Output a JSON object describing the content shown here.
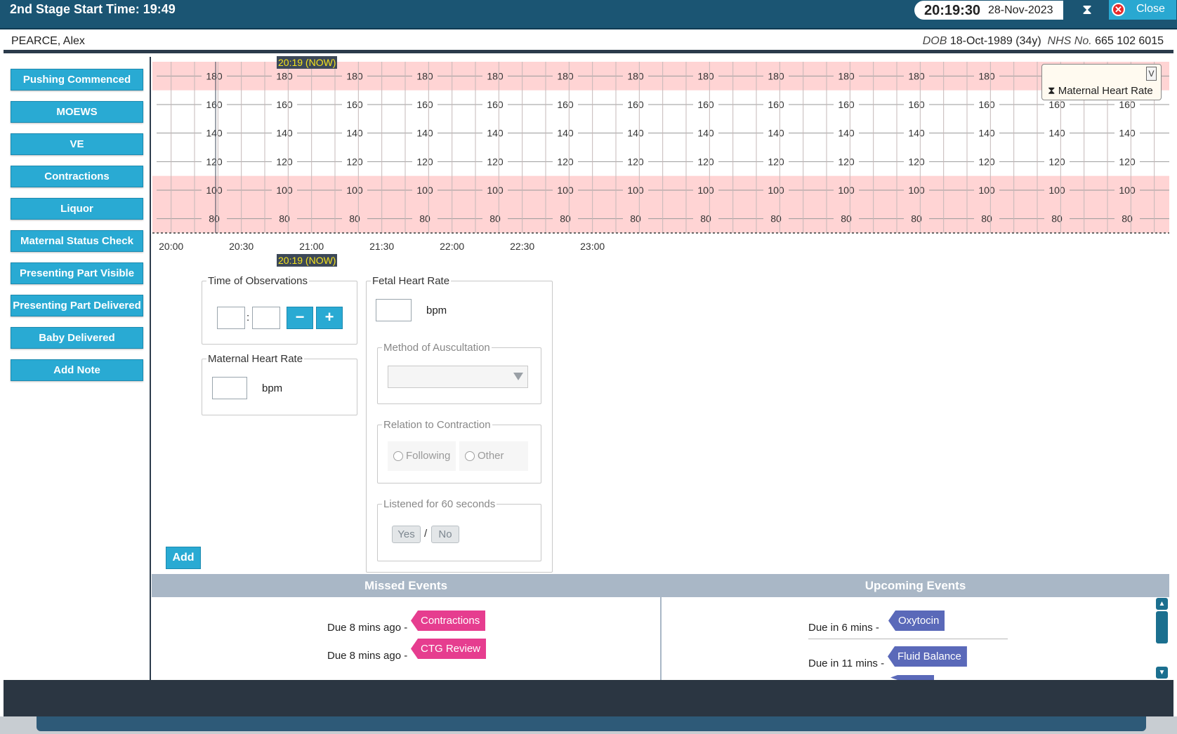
{
  "titlebar": {
    "title": "2nd Stage Start Time: 19:49",
    "clock_time": "20:19:30",
    "clock_date": "28-Nov-2023",
    "close_label": "Close"
  },
  "patient": {
    "name": "PEARCE, Alex",
    "dob_label": "DOB",
    "dob_value": "18-Oct-1989 (34y)",
    "nhs_label": "NHS No.",
    "nhs_value": "665 102 6015"
  },
  "sidebar": {
    "buttons": [
      "Pushing Commenced",
      "MOEWS",
      "VE",
      "Contractions",
      "Liquor",
      "Maternal Status Check",
      "Presenting Part Visible",
      "Presenting Part Delivered",
      "Baby Delivered",
      "Add Note"
    ]
  },
  "chart": {
    "now_label": "20:19 (NOW)",
    "legend_selected": "Maternal Heart Rate",
    "legend_dropdown_glyph": "V",
    "band_color": "#ffd4d4"
  },
  "chart_data": {
    "type": "line",
    "title": "",
    "series": [
      {
        "name": "Maternal Heart Rate",
        "values": []
      }
    ],
    "y_ticks": [
      180,
      160,
      140,
      120,
      100,
      80
    ],
    "x_ticks": [
      "20:00",
      "20:30",
      "21:00",
      "21:30",
      "22:00",
      "22:30",
      "23:00"
    ],
    "now_time": "20:19",
    "shaded_above": 170,
    "shaded_below": 110
  },
  "form": {
    "time_obs_legend": "Time of Observations",
    "time_separator": ":",
    "minus_label": "−",
    "plus_label": "+",
    "maternal_hr_legend": "Maternal Heart Rate",
    "maternal_hr_unit": "bpm",
    "fetal_hr_legend": "Fetal Heart Rate",
    "fetal_hr_unit": "bpm",
    "auscultation_legend": "Method of Auscultation",
    "relation_legend": "Relation to Contraction",
    "relation_options": [
      "Following",
      "Other"
    ],
    "listened_legend": "Listened for 60 seconds",
    "yes_label": "Yes",
    "slash": "/",
    "no_label": "No",
    "add_label": "Add"
  },
  "events": {
    "missed_title": "Missed Events",
    "upcoming_title": "Upcoming Events",
    "missed": [
      {
        "due": "Due 8 mins ago -",
        "tag": "Contractions"
      },
      {
        "due": "Due 8 mins ago -",
        "tag": "CTG Review"
      }
    ],
    "upcoming": [
      {
        "due": "Due in 6 mins -",
        "tag": "Oxytocin"
      },
      {
        "due": "Due in 11 mins -",
        "tag": "Fluid Balance"
      }
    ],
    "missed_color": "#e63d8f",
    "upcoming_color": "#5a69b9"
  }
}
